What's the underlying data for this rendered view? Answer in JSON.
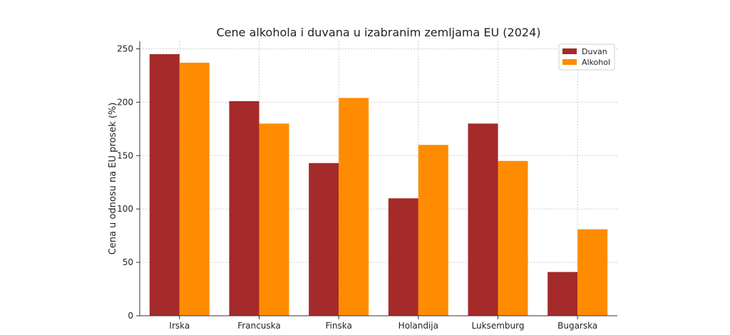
{
  "chart_data": {
    "type": "bar",
    "title": "Cene alkohola i duvana u izabranim zemljama EU (2024)",
    "xlabel": "",
    "ylabel": "Cena u odnosu na EU prosek (%)",
    "categories": [
      "Irska",
      "Francuska",
      "Finska",
      "Holandija",
      "Luksemburg",
      "Bugarska"
    ],
    "series": [
      {
        "name": "Duvan",
        "values": [
          245,
          201,
          143,
          110,
          180,
          41
        ],
        "color": "#a52a2a"
      },
      {
        "name": "Alkohol",
        "values": [
          237,
          180,
          204,
          160,
          145,
          81
        ],
        "color": "#ff8c00"
      }
    ],
    "ylim": [
      0,
      257
    ],
    "yticks": [
      0,
      50,
      100,
      150,
      200,
      250
    ],
    "grid": true,
    "legend_position": "top-right"
  }
}
